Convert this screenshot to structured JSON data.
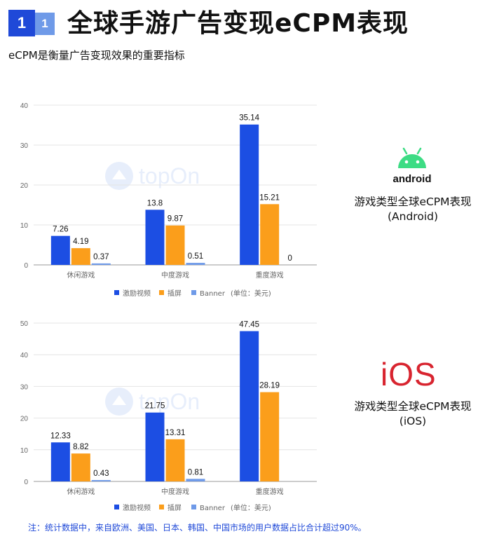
{
  "header": {
    "badge_primary": "1",
    "badge_secondary": "1",
    "title": "全球手游广告变现eCPM表现",
    "subtitle": "eCPM是衡量广告变现效果的重要指标"
  },
  "watermark_text": "topOn",
  "colors": {
    "rewarded_video": "#1c4ee3",
    "interstitial": "#fb9e1b",
    "banner": "#6f9ae8",
    "android_green": "#3ddc84",
    "ios_red": "#d8242f",
    "footnote_blue": "#1f49d8"
  },
  "chart_data": [
    {
      "type": "bar",
      "categories": [
        "休闲游戏",
        "中度游戏",
        "重度游戏"
      ],
      "series": [
        {
          "name": "激励视频",
          "values": [
            7.26,
            13.8,
            35.14
          ]
        },
        {
          "name": "插屏",
          "values": [
            4.19,
            9.87,
            15.21
          ]
        },
        {
          "name": "Banner",
          "values": [
            0.37,
            0.51,
            0
          ]
        }
      ],
      "value_labels": [
        [
          "7.26",
          "13.8",
          "35.14"
        ],
        [
          "4.19",
          "9.87",
          "15.21"
        ],
        [
          "0.37",
          "0.51",
          "0"
        ]
      ],
      "ylim": [
        0,
        40
      ],
      "yticks": [
        0,
        10,
        20,
        30,
        40
      ],
      "unit_note": "(单位：美元)",
      "legend_position": "bottom",
      "grid": true
    },
    {
      "type": "bar",
      "categories": [
        "休闲游戏",
        "中度游戏",
        "重度游戏"
      ],
      "series": [
        {
          "name": "激励视频",
          "values": [
            12.33,
            21.75,
            47.45
          ]
        },
        {
          "name": "插屏",
          "values": [
            8.82,
            13.31,
            28.19
          ]
        },
        {
          "name": "Banner",
          "values": [
            0.43,
            0.81,
            null
          ]
        }
      ],
      "value_labels": [
        [
          "12.33",
          "21.75",
          "47.45"
        ],
        [
          "8.82",
          "13.31",
          "28.19"
        ],
        [
          "0.43",
          "0.81",
          ""
        ]
      ],
      "ylim": [
        0,
        50
      ],
      "yticks": [
        0,
        10,
        20,
        30,
        40,
        50
      ],
      "unit_note": "(单位：美元)",
      "legend_position": "bottom",
      "grid": true
    }
  ],
  "android_panel": {
    "logo_text": "android",
    "line1": "游戏类型全球eCPM表现",
    "line2": "(Android)"
  },
  "ios_panel": {
    "logo_text": "iOS",
    "line1": "游戏类型全球eCPM表现",
    "line2": "(iOS)"
  },
  "footnote": "注：统计数据中，来自欧洲、美国、日本、韩国、中国市场的用户数据占比合计超过90%。"
}
